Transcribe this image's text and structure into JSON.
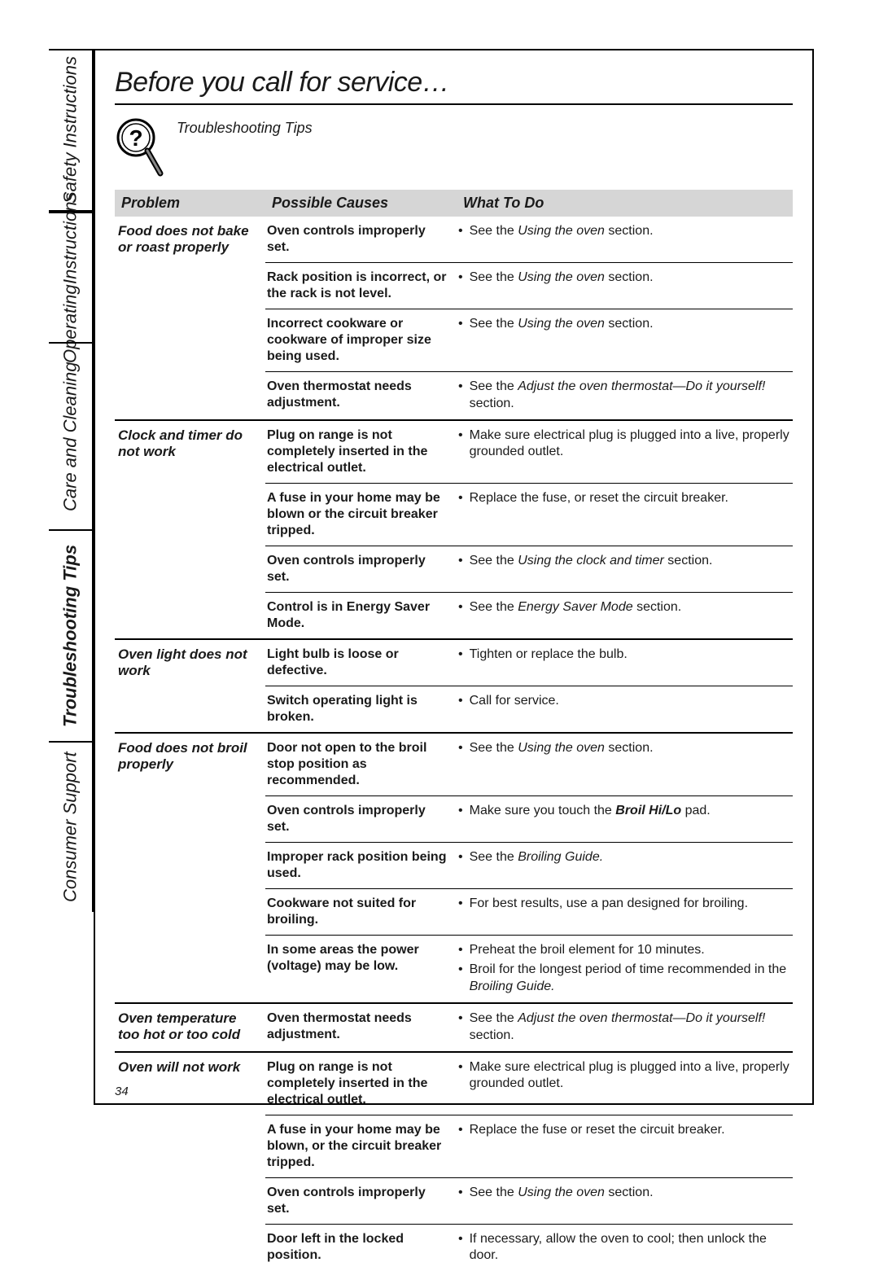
{
  "page_number": "34",
  "title": "Before you call for service…",
  "subtitle": "Troubleshooting Tips",
  "side_tabs": [
    {
      "label": "Safety Instructions"
    },
    {
      "label": "Operating\nInstructions"
    },
    {
      "label": "Care and Cleaning"
    },
    {
      "label": "Troubleshooting Tips",
      "current": true
    },
    {
      "label": "Consumer Support"
    }
  ],
  "headers": {
    "problem": "Problem",
    "causes": "Possible Causes",
    "todo": "What To Do"
  },
  "colors": {
    "header_bg": "#d6d6d6",
    "border": "#000000",
    "text": "#1a1a1a"
  },
  "problems": [
    {
      "problem": "Food does not bake or roast properly",
      "rows": [
        {
          "cause": "Oven controls improperly set.",
          "todo": [
            [
              {
                "t": "See the "
              },
              {
                "t": "Using the oven",
                "i": true
              },
              {
                "t": " section."
              }
            ]
          ]
        },
        {
          "cause": "Rack position is incorrect, or the rack is not level.",
          "todo": [
            [
              {
                "t": "See the "
              },
              {
                "t": "Using the oven",
                "i": true
              },
              {
                "t": " section."
              }
            ]
          ]
        },
        {
          "cause": "Incorrect cookware or cookware of improper size being used.",
          "todo": [
            [
              {
                "t": "See the "
              },
              {
                "t": "Using the oven",
                "i": true
              },
              {
                "t": " section."
              }
            ]
          ]
        },
        {
          "cause": "Oven thermostat needs adjustment.",
          "todo": [
            [
              {
                "t": "See the "
              },
              {
                "t": "Adjust the oven thermostat—Do it yourself!",
                "i": true
              },
              {
                "t": " section."
              }
            ]
          ]
        }
      ]
    },
    {
      "problem": "Clock and timer do not work",
      "rows": [
        {
          "cause": "Plug on range is not completely inserted in the electrical outlet.",
          "todo": [
            [
              {
                "t": "Make sure electrical plug is plugged into a live, properly grounded outlet."
              }
            ]
          ]
        },
        {
          "cause": "A fuse in your home may be blown or the circuit breaker tripped.",
          "todo": [
            [
              {
                "t": "Replace the fuse, or reset the circuit breaker."
              }
            ]
          ]
        },
        {
          "cause": "Oven controls improperly set.",
          "todo": [
            [
              {
                "t": "See the "
              },
              {
                "t": "Using the clock and timer",
                "i": true
              },
              {
                "t": " section."
              }
            ]
          ]
        },
        {
          "cause": "Control is in Energy Saver Mode.",
          "todo": [
            [
              {
                "t": "See the "
              },
              {
                "t": "Energy Saver Mode",
                "i": true
              },
              {
                "t": " section."
              }
            ]
          ]
        }
      ]
    },
    {
      "problem": "Oven light does not work",
      "rows": [
        {
          "cause": "Light bulb is loose or defective.",
          "todo": [
            [
              {
                "t": "Tighten or replace the bulb."
              }
            ]
          ]
        },
        {
          "cause": "Switch operating light is broken.",
          "todo": [
            [
              {
                "t": "Call for service."
              }
            ]
          ]
        }
      ]
    },
    {
      "problem": "Food does not broil properly",
      "rows": [
        {
          "cause": "Door not open to the broil stop position as recommended.",
          "todo": [
            [
              {
                "t": "See the "
              },
              {
                "t": "Using the oven",
                "i": true
              },
              {
                "t": " section."
              }
            ]
          ]
        },
        {
          "cause": "Oven controls improperly set.",
          "todo": [
            [
              {
                "t": "Make sure you touch the "
              },
              {
                "t": "Broil Hi/Lo",
                "bi": true
              },
              {
                "t": " pad."
              }
            ]
          ]
        },
        {
          "cause": "Improper rack position being used.",
          "todo": [
            [
              {
                "t": "See the "
              },
              {
                "t": "Broiling Guide.",
                "i": true
              }
            ]
          ]
        },
        {
          "cause": "Cookware not suited for broiling.",
          "todo": [
            [
              {
                "t": "For best results, use a pan designed for broiling."
              }
            ]
          ]
        },
        {
          "cause": "In some areas the power (voltage) may be low.",
          "todo": [
            [
              {
                "t": "Preheat the broil element for 10 minutes."
              }
            ],
            [
              {
                "t": "Broil for the longest period of time recommended in the "
              },
              {
                "t": "Broiling Guide.",
                "i": true
              }
            ]
          ]
        }
      ]
    },
    {
      "problem": "Oven temperature too hot or too cold",
      "rows": [
        {
          "cause": "Oven thermostat needs adjustment.",
          "todo": [
            [
              {
                "t": "See the "
              },
              {
                "t": "Adjust the oven thermostat—Do it yourself!",
                "i": true
              },
              {
                "t": " section."
              }
            ]
          ]
        }
      ]
    },
    {
      "problem": "Oven will not work",
      "rows": [
        {
          "cause": "Plug on range is not completely inserted in the electrical outlet.",
          "todo": [
            [
              {
                "t": "Make sure electrical plug is plugged into a live, properly grounded outlet."
              }
            ]
          ]
        },
        {
          "cause": "A fuse in your home may be blown, or the circuit breaker tripped.",
          "todo": [
            [
              {
                "t": "Replace the fuse or reset the circuit breaker."
              }
            ]
          ]
        },
        {
          "cause": "Oven controls improperly set.",
          "todo": [
            [
              {
                "t": "See the "
              },
              {
                "t": "Using the oven",
                "i": true
              },
              {
                "t": " section."
              }
            ]
          ]
        },
        {
          "cause": "Door left in the locked position.",
          "todo": [
            [
              {
                "t": "If necessary, allow the oven to cool; then unlock the door."
              }
            ]
          ],
          "no_bottom": true
        }
      ]
    }
  ]
}
